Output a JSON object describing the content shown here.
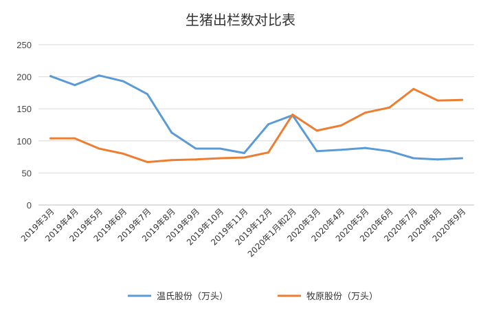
{
  "chart_data": {
    "type": "line",
    "title": "生猪出栏数对比表",
    "xlabel": "",
    "ylabel": "",
    "ylim": [
      0,
      250
    ],
    "yticks": [
      0,
      50,
      100,
      150,
      200,
      250
    ],
    "grid": true,
    "legend_position": "bottom",
    "categories": [
      "2019年3月",
      "2019年4月",
      "2019年5月",
      "2019年6月",
      "2019年7月",
      "2019年8月",
      "2019年9月",
      "2019年10月",
      "2019年11月",
      "2019年12月",
      "2020年1月和2月",
      "2020年3月",
      "2020年4月",
      "2020年5月",
      "2020年6月",
      "2020年7月",
      "2020年8月",
      "2020年9月"
    ],
    "series": [
      {
        "name": "温氏股份（万头）",
        "color": "#5b9bd5",
        "values": [
          201,
          187,
          202,
          193,
          173,
          113,
          88,
          88,
          81,
          126,
          140,
          84,
          86,
          89,
          84,
          73,
          71,
          73
        ]
      },
      {
        "name": "牧原股份（万头）",
        "color": "#ed7d31",
        "values": [
          104,
          104,
          88,
          80,
          67,
          70,
          71,
          73,
          74,
          82,
          141,
          116,
          124,
          144,
          152,
          181,
          163,
          164
        ]
      }
    ]
  }
}
